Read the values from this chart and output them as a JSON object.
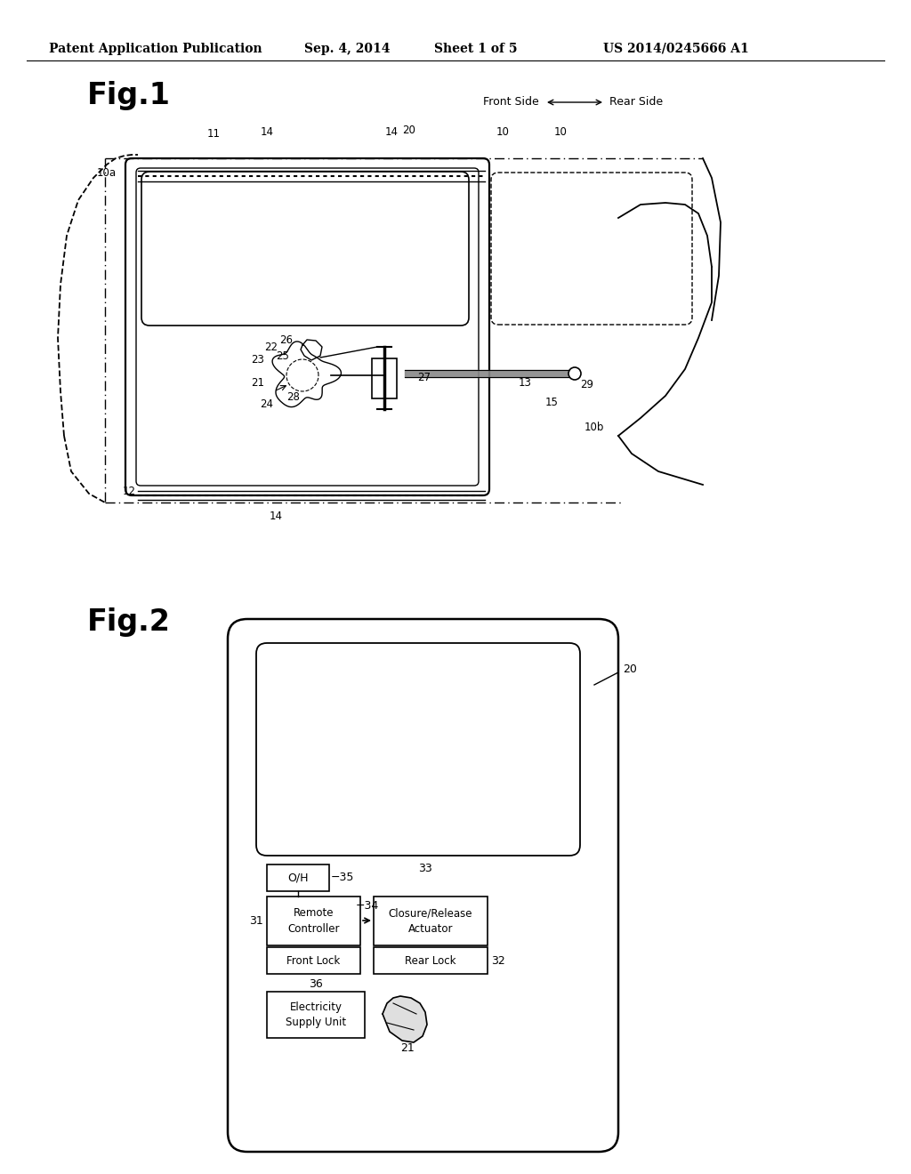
{
  "background_color": "#ffffff",
  "header_text": "Patent Application Publication",
  "header_date": "Sep. 4, 2014",
  "header_sheet": "Sheet 1 of 5",
  "header_patent": "US 2014/0245666 A1",
  "fig1_label": "Fig.1",
  "fig2_label": "Fig.2",
  "fig1_direction": "Front Side",
  "fig1_arrow": "←→",
  "fig1_direction2": "Rear Side",
  "line_color": "#000000",
  "text_color": "#000000",
  "gray": "#888888"
}
